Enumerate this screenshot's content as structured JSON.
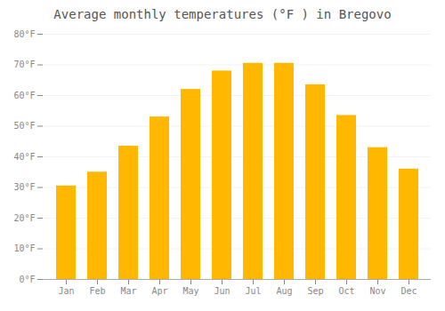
{
  "chart_data": {
    "type": "bar",
    "title": "Average monthly temperatures (°F ) in Bregovo",
    "categories": [
      "Jan",
      "Feb",
      "Mar",
      "Apr",
      "May",
      "Jun",
      "Jul",
      "Aug",
      "Sep",
      "Oct",
      "Nov",
      "Dec"
    ],
    "values": [
      30.5,
      35.0,
      43.5,
      53.0,
      62.0,
      68.0,
      70.5,
      70.5,
      63.5,
      53.5,
      43.0,
      36.0
    ],
    "color": "#FFB700",
    "ylim": [
      0,
      80
    ],
    "yticks": [
      {
        "value": 0,
        "label": "0°F"
      },
      {
        "value": 10,
        "label": "10°F"
      },
      {
        "value": 20,
        "label": "20°F"
      },
      {
        "value": 30,
        "label": "30°F"
      },
      {
        "value": 40,
        "label": "40°F"
      },
      {
        "value": 50,
        "label": "50°F"
      },
      {
        "value": 60,
        "label": "60°F"
      },
      {
        "value": 70,
        "label": "70°F"
      },
      {
        "value": 80,
        "label": "80°F"
      }
    ],
    "grid": true
  }
}
